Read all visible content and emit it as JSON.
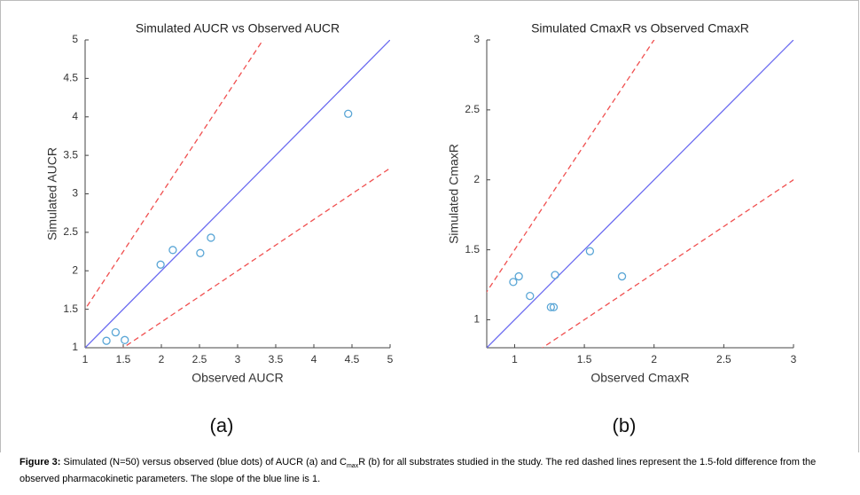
{
  "chart_data": [
    {
      "type": "scatter",
      "title": "Simulated AUCR vs Observed AUCR",
      "x_label": "Observed AUCR",
      "y_label": "Simulated AUCR",
      "panel_label": "(a)",
      "x": [
        1.28,
        1.4,
        1.52,
        1.99,
        2.15,
        2.51,
        2.65,
        4.45
      ],
      "values": [
        1.09,
        1.2,
        1.1,
        2.08,
        2.27,
        2.23,
        2.43,
        4.04
      ],
      "color": "#5aa6d6",
      "xlim": [
        1,
        5
      ],
      "ylim": [
        1,
        5
      ],
      "xticks": [
        1,
        1.5,
        2,
        2.5,
        3,
        3.5,
        4,
        4.5,
        5
      ],
      "yticks": [
        1,
        1.5,
        2,
        2.5,
        3,
        3.5,
        4,
        4.5,
        5
      ],
      "reference_lines": [
        {
          "slope": 1,
          "color": "#6a6af0",
          "dashed": false
        },
        {
          "slope": 1.5,
          "color": "#f05050",
          "dashed": true
        },
        {
          "slope": 0.6667,
          "color": "#f05050",
          "dashed": true
        }
      ]
    },
    {
      "type": "scatter",
      "title": "Simulated CmaxR vs Observed CmaxR",
      "x_label": "Observed CmaxR",
      "y_label": "Simulated CmaxR",
      "panel_label": "(b)",
      "x": [
        0.99,
        1.03,
        1.11,
        1.29,
        1.54,
        1.77,
        1.26,
        1.28
      ],
      "values": [
        1.27,
        1.31,
        1.17,
        1.32,
        1.49,
        1.31,
        1.09,
        1.09
      ],
      "color": "#5aa6d6",
      "xlim": [
        0.8,
        3
      ],
      "ylim": [
        0.8,
        3
      ],
      "xticks": [
        1,
        1.5,
        2,
        2.5,
        3
      ],
      "yticks": [
        1,
        1.5,
        2,
        2.5,
        3
      ],
      "reference_lines": [
        {
          "slope": 1,
          "color": "#6a6af0",
          "dashed": false
        },
        {
          "slope": 1.5,
          "color": "#f05050",
          "dashed": true
        },
        {
          "slope": 0.6667,
          "color": "#f05050",
          "dashed": true
        }
      ]
    }
  ],
  "caption": {
    "label": "Figure 3:",
    "text_1": " Simulated (N=50) versus observed (blue dots) of AUCR (a) and C",
    "subscript": "max",
    "text_2": "R  (b) for all substrates studied in the study. The red dashed lines represent the 1.5-fold difference from the observed pharmacokinetic parameters. The slope of the blue line is 1."
  }
}
